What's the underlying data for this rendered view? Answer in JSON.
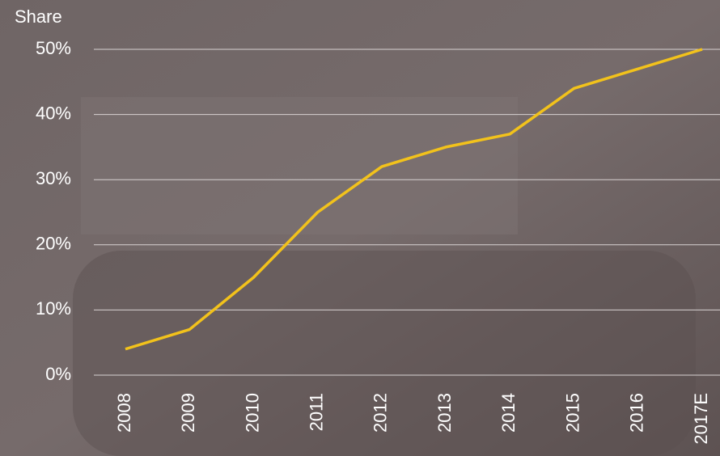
{
  "chart_data": {
    "type": "line",
    "y_label": "Share",
    "categories": [
      "2008",
      "2009",
      "2010",
      "2011",
      "2012",
      "2013",
      "2014",
      "2015",
      "2016",
      "2017E"
    ],
    "values": [
      4,
      7,
      15,
      25,
      32,
      35,
      37,
      44,
      47,
      50
    ],
    "color": "#f2c21b",
    "ylim": [
      0,
      50
    ],
    "yticks": [
      {
        "value": 0,
        "label": "0%"
      },
      {
        "value": 10,
        "label": "10%"
      },
      {
        "value": 20,
        "label": "20%"
      },
      {
        "value": 30,
        "label": "30%"
      },
      {
        "value": 40,
        "label": "40%"
      },
      {
        "value": 50,
        "label": "50%"
      }
    ],
    "grid": true
  }
}
